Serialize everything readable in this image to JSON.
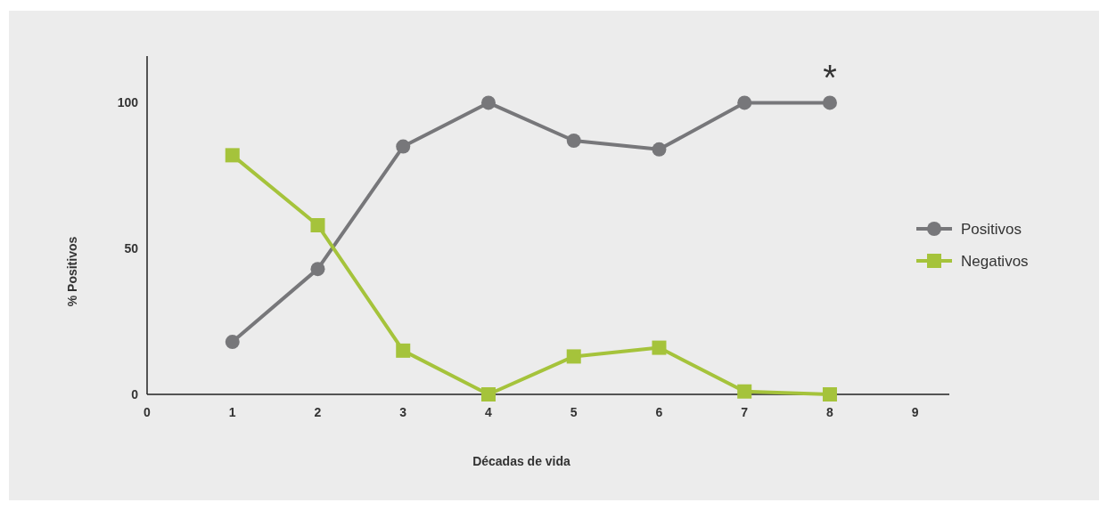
{
  "chart_data": {
    "type": "line",
    "xlabel": "Décadas de vida",
    "ylabel": "% Positivos",
    "x": [
      1,
      2,
      3,
      4,
      5,
      6,
      7,
      8
    ],
    "series": [
      {
        "name": "Positivos",
        "color": "#77777a",
        "marker": "circle",
        "values": [
          18,
          43,
          85,
          100,
          87,
          84,
          100,
          100
        ]
      },
      {
        "name": "Negativos",
        "color": "#a5c33b",
        "marker": "square",
        "values": [
          82,
          58,
          15,
          0,
          13,
          16,
          1,
          0
        ]
      }
    ],
    "xlim": [
      0,
      9.4
    ],
    "xticks": [
      0,
      1,
      2,
      3,
      4,
      5,
      6,
      7,
      8,
      9
    ],
    "ylim": [
      0,
      116
    ],
    "yticks": [
      0,
      50,
      100
    ],
    "grid": false,
    "legend": "right",
    "line_style": "solid",
    "annotations": [
      {
        "text": "*",
        "x": 8,
        "y": 100
      }
    ]
  }
}
